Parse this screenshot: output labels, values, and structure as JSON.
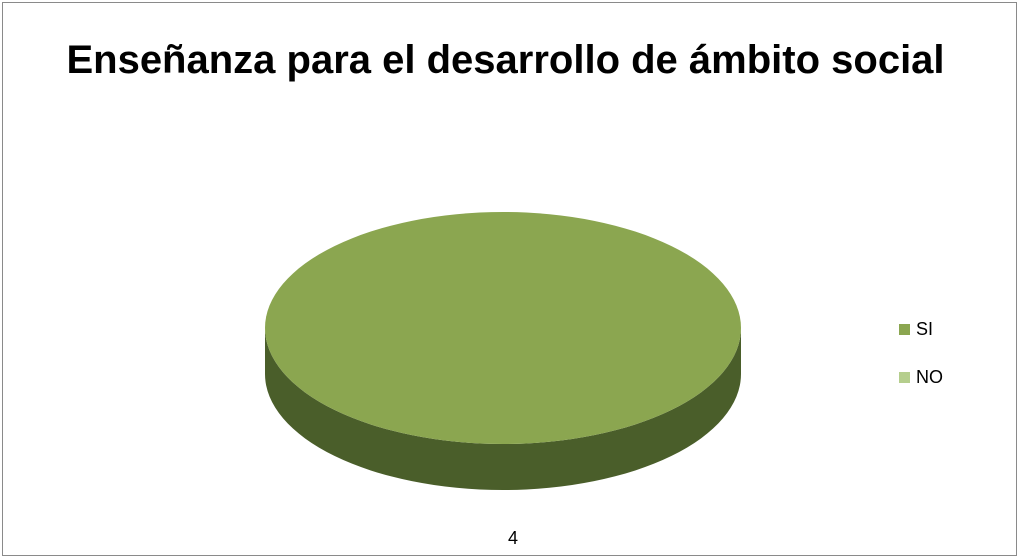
{
  "chart_data": {
    "type": "pie",
    "title": "Enseñanza para el desarrollo de ámbito social",
    "categories": [
      "SI",
      "NO"
    ],
    "values": [
      4,
      0
    ],
    "data_labels": [
      "4"
    ],
    "legend_position": "right",
    "colors": {
      "SI_top": "#8BA650",
      "SI_side": "#4A5E2A",
      "NO": "#B5CE8D"
    },
    "three_d": true
  }
}
